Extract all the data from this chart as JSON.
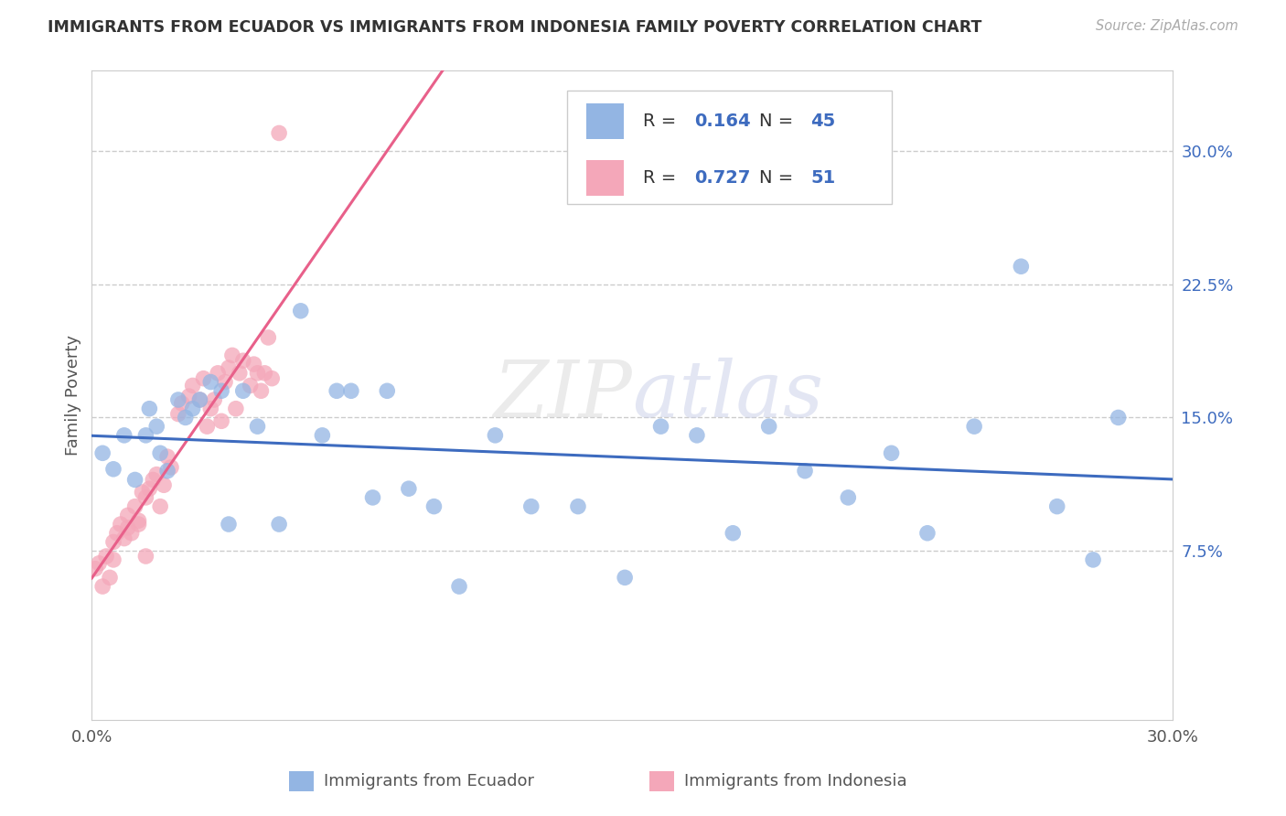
{
  "title": "IMMIGRANTS FROM ECUADOR VS IMMIGRANTS FROM INDONESIA FAMILY POVERTY CORRELATION CHART",
  "source": "Source: ZipAtlas.com",
  "ylabel": "Family Poverty",
  "xlim": [
    0.0,
    0.3
  ],
  "ylim": [
    -0.02,
    0.345
  ],
  "ytick_vals": [
    0.075,
    0.15,
    0.225,
    0.3
  ],
  "ytick_labels": [
    "7.5%",
    "15.0%",
    "22.5%",
    "30.0%"
  ],
  "xtick_vals": [
    0.0,
    0.3
  ],
  "xtick_labels": [
    "0.0%",
    "30.0%"
  ],
  "ecuador_R": 0.164,
  "ecuador_N": 45,
  "indonesia_R": 0.727,
  "indonesia_N": 51,
  "ecuador_color": "#93b5e3",
  "indonesia_color": "#f4a7b9",
  "ecuador_line_color": "#3d6bbf",
  "indonesia_line_color": "#e8608a",
  "legend_R_color": "#3d6bbf",
  "watermark": "ZIPatlas",
  "ecuador_legend_label": "Immigrants from Ecuador",
  "indonesia_legend_label": "Immigrants from Indonesia",
  "ecuador_x": [
    0.003,
    0.006,
    0.009,
    0.012,
    0.015,
    0.016,
    0.018,
    0.019,
    0.021,
    0.024,
    0.026,
    0.028,
    0.03,
    0.033,
    0.036,
    0.038,
    0.042,
    0.046,
    0.052,
    0.058,
    0.064,
    0.068,
    0.072,
    0.078,
    0.082,
    0.088,
    0.095,
    0.102,
    0.112,
    0.122,
    0.135,
    0.148,
    0.158,
    0.168,
    0.178,
    0.188,
    0.198,
    0.21,
    0.222,
    0.232,
    0.245,
    0.258,
    0.268,
    0.278,
    0.285
  ],
  "ecuador_y": [
    0.13,
    0.121,
    0.14,
    0.115,
    0.14,
    0.155,
    0.145,
    0.13,
    0.12,
    0.16,
    0.15,
    0.155,
    0.16,
    0.17,
    0.165,
    0.09,
    0.165,
    0.145,
    0.09,
    0.21,
    0.14,
    0.165,
    0.165,
    0.105,
    0.165,
    0.11,
    0.1,
    0.055,
    0.14,
    0.1,
    0.1,
    0.06,
    0.145,
    0.14,
    0.085,
    0.145,
    0.12,
    0.105,
    0.13,
    0.085,
    0.145,
    0.235,
    0.1,
    0.07,
    0.15
  ],
  "indonesia_x": [
    0.001,
    0.002,
    0.003,
    0.004,
    0.005,
    0.006,
    0.006,
    0.007,
    0.008,
    0.009,
    0.01,
    0.01,
    0.011,
    0.012,
    0.013,
    0.013,
    0.014,
    0.015,
    0.015,
    0.016,
    0.017,
    0.018,
    0.019,
    0.02,
    0.021,
    0.022,
    0.024,
    0.025,
    0.027,
    0.028,
    0.03,
    0.031,
    0.032,
    0.033,
    0.034,
    0.035,
    0.036,
    0.037,
    0.038,
    0.039,
    0.04,
    0.041,
    0.042,
    0.044,
    0.045,
    0.046,
    0.047,
    0.048,
    0.049,
    0.05,
    0.052
  ],
  "indonesia_y": [
    0.065,
    0.068,
    0.055,
    0.072,
    0.06,
    0.07,
    0.08,
    0.085,
    0.09,
    0.082,
    0.095,
    0.088,
    0.085,
    0.1,
    0.092,
    0.09,
    0.108,
    0.105,
    0.072,
    0.11,
    0.115,
    0.118,
    0.1,
    0.112,
    0.128,
    0.122,
    0.152,
    0.158,
    0.162,
    0.168,
    0.16,
    0.172,
    0.145,
    0.155,
    0.16,
    0.175,
    0.148,
    0.17,
    0.178,
    0.185,
    0.155,
    0.175,
    0.182,
    0.168,
    0.18,
    0.175,
    0.165,
    0.175,
    0.195,
    0.172,
    0.31
  ]
}
